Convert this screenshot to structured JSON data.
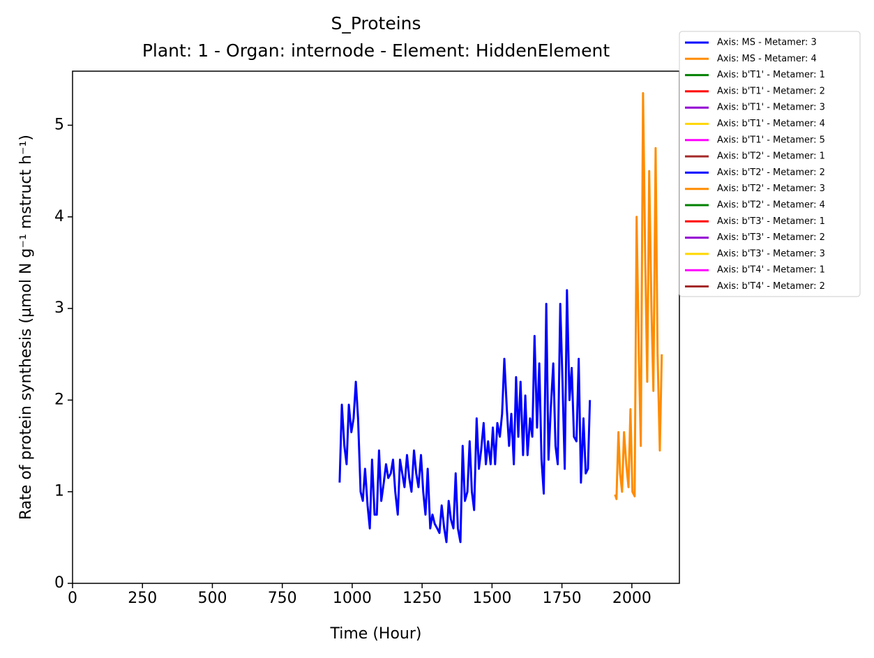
{
  "chart_data": {
    "type": "line",
    "title": "S_Proteins",
    "subtitle": "Plant: 1 - Organ: internode - Element: HiddenElement",
    "x_label": "Time (Hour)",
    "y_label": "Rate of protein synthesis (µmol N g⁻¹ mstruct h⁻¹)",
    "xlim": [
      0,
      2170
    ],
    "ylim": [
      0,
      5.59
    ],
    "xticks": [
      0,
      250,
      500,
      750,
      1000,
      1250,
      1500,
      1750,
      2000
    ],
    "yticks": [
      0,
      1,
      2,
      3,
      4,
      5
    ],
    "grid": false,
    "legend": "outside-upper-right",
    "series": [
      {
        "name": "Axis: MS - Metamer: 3",
        "color": "#0000ff",
        "x": [
          955,
          963,
          972,
          980,
          988,
          997,
          1005,
          1013,
          1021,
          1030,
          1038,
          1046,
          1055,
          1063,
          1071,
          1080,
          1088,
          1096,
          1104,
          1113,
          1121,
          1129,
          1138,
          1146,
          1154,
          1163,
          1171,
          1179,
          1187,
          1196,
          1204,
          1212,
          1221,
          1229,
          1237,
          1246,
          1254,
          1262,
          1270,
          1279,
          1287,
          1295,
          1304,
          1312,
          1320,
          1329,
          1337,
          1345,
          1353,
          1362,
          1370,
          1378,
          1387,
          1395,
          1403,
          1412,
          1420,
          1428,
          1436,
          1445,
          1453,
          1461,
          1470,
          1478,
          1486,
          1495,
          1503,
          1511,
          1519,
          1528,
          1536,
          1544,
          1553,
          1561,
          1569,
          1578,
          1586,
          1594,
          1602,
          1611,
          1619,
          1627,
          1636,
          1644,
          1652,
          1661,
          1669,
          1677,
          1685,
          1694,
          1702,
          1710,
          1719,
          1727,
          1735,
          1744,
          1752,
          1760,
          1768,
          1777,
          1785,
          1793,
          1802,
          1810,
          1818,
          1827,
          1835,
          1843,
          1850
        ],
        "values": [
          1.1,
          1.95,
          1.5,
          1.3,
          1.95,
          1.65,
          1.8,
          2.2,
          1.8,
          1.0,
          0.9,
          1.25,
          0.85,
          0.6,
          1.35,
          0.75,
          0.75,
          1.45,
          0.9,
          1.1,
          1.3,
          1.15,
          1.2,
          1.35,
          1.0,
          0.75,
          1.35,
          1.2,
          1.05,
          1.4,
          1.15,
          1.0,
          1.45,
          1.2,
          1.05,
          1.4,
          1.0,
          0.75,
          1.25,
          0.6,
          0.75,
          0.65,
          0.6,
          0.55,
          0.85,
          0.6,
          0.45,
          0.9,
          0.7,
          0.6,
          1.2,
          0.6,
          0.45,
          1.5,
          0.9,
          1.0,
          1.55,
          1.0,
          0.8,
          1.8,
          1.25,
          1.45,
          1.75,
          1.3,
          1.55,
          1.3,
          1.7,
          1.3,
          1.75,
          1.6,
          1.85,
          2.45,
          1.9,
          1.5,
          1.85,
          1.3,
          2.25,
          1.6,
          2.2,
          1.4,
          2.05,
          1.4,
          1.8,
          1.6,
          2.7,
          1.7,
          2.4,
          1.35,
          0.98,
          3.05,
          1.35,
          1.9,
          2.4,
          1.5,
          1.3,
          3.05,
          2.2,
          1.25,
          3.2,
          2.0,
          2.35,
          1.6,
          1.55,
          2.45,
          1.1,
          1.8,
          1.2,
          1.25,
          2.0
        ]
      },
      {
        "name": "Axis: MS - Metamer: 4",
        "color": "#ff8c00",
        "x": [
          1940,
          1945,
          1952,
          1958,
          1965,
          1972,
          1980,
          1988,
          1995,
          2002,
          2010,
          2017,
          2025,
          2032,
          2040,
          2048,
          2055,
          2062,
          2070,
          2077,
          2085,
          2092,
          2100,
          2107
        ],
        "values": [
          0.97,
          0.92,
          1.65,
          1.2,
          1.0,
          1.65,
          1.3,
          1.05,
          1.9,
          1.0,
          0.95,
          4.0,
          2.5,
          1.5,
          5.35,
          3.5,
          2.2,
          4.5,
          3.0,
          2.1,
          4.75,
          2.5,
          1.45,
          2.5
        ]
      },
      {
        "name": "Axis: b'T1' - Metamer: 1",
        "color": "#008000",
        "x": [],
        "values": []
      },
      {
        "name": "Axis: b'T1' - Metamer: 2",
        "color": "#ff0000",
        "x": [],
        "values": []
      },
      {
        "name": "Axis: b'T1' - Metamer: 3",
        "color": "#9400d3",
        "x": [],
        "values": []
      },
      {
        "name": "Axis: b'T1' - Metamer: 4",
        "color": "#ffd700",
        "x": [],
        "values": []
      },
      {
        "name": "Axis: b'T1' - Metamer: 5",
        "color": "#ff00ff",
        "x": [],
        "values": []
      },
      {
        "name": "Axis: b'T2' - Metamer: 1",
        "color": "#a52a2a",
        "x": [],
        "values": []
      },
      {
        "name": "Axis: b'T2' - Metamer: 2",
        "color": "#0000ff",
        "x": [],
        "values": []
      },
      {
        "name": "Axis: b'T2' - Metamer: 3",
        "color": "#ff8c00",
        "x": [],
        "values": []
      },
      {
        "name": "Axis: b'T2' - Metamer: 4",
        "color": "#008000",
        "x": [],
        "values": []
      },
      {
        "name": "Axis: b'T3' - Metamer: 1",
        "color": "#ff0000",
        "x": [],
        "values": []
      },
      {
        "name": "Axis: b'T3' - Metamer: 2",
        "color": "#9400d3",
        "x": [],
        "values": []
      },
      {
        "name": "Axis: b'T3' - Metamer: 3",
        "color": "#ffd700",
        "x": [],
        "values": []
      },
      {
        "name": "Axis: b'T4' - Metamer: 1",
        "color": "#ff00ff",
        "x": [],
        "values": []
      },
      {
        "name": "Axis: b'T4' - Metamer: 2",
        "color": "#a52a2a",
        "x": [],
        "values": []
      }
    ]
  }
}
